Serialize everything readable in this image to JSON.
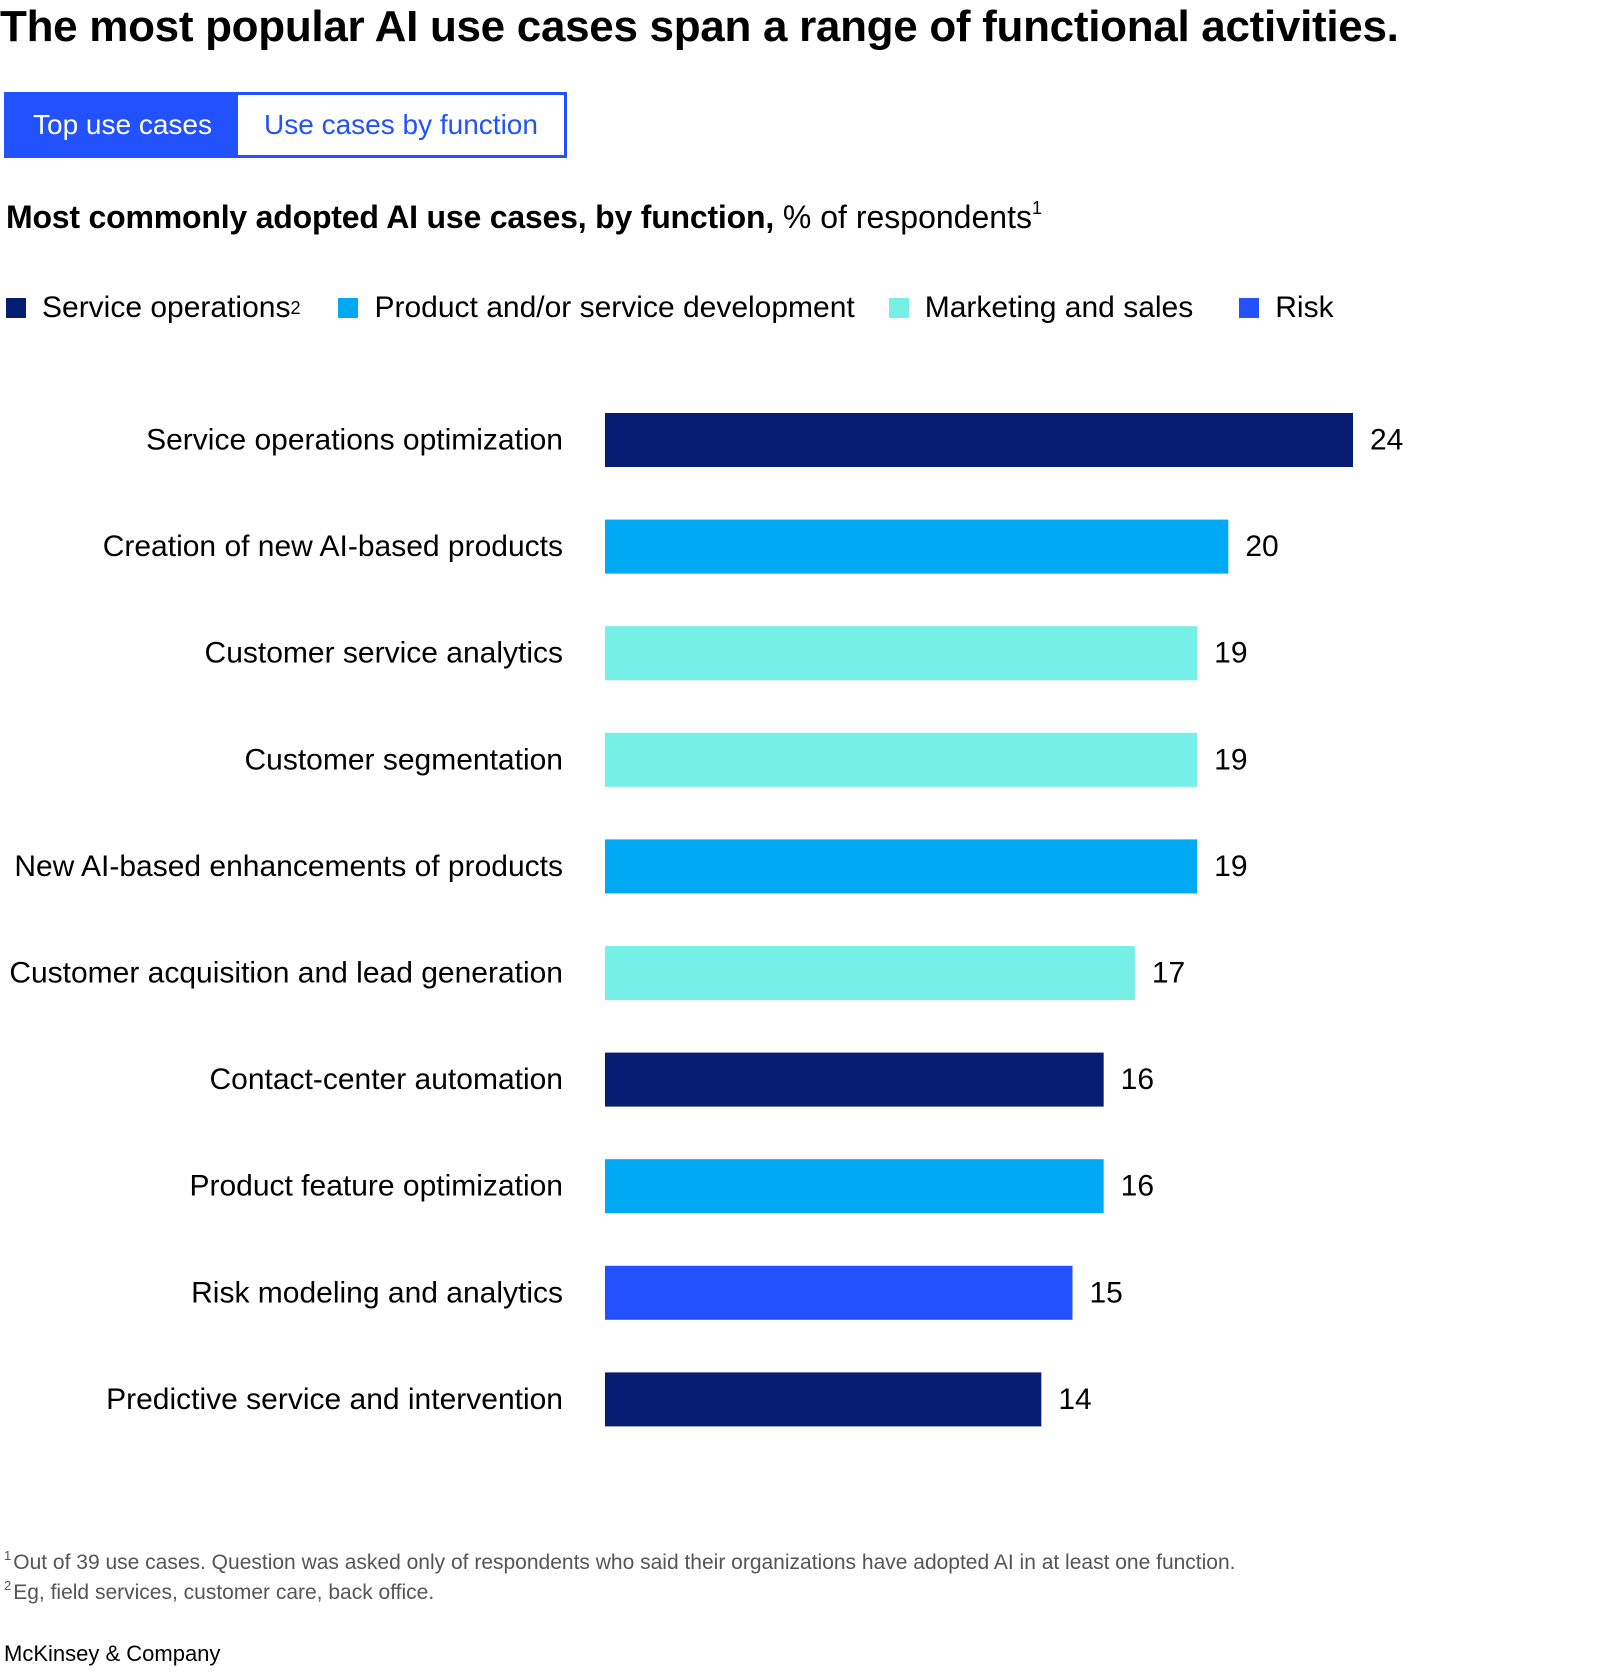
{
  "headline": "The most popular AI use cases span a range of functional activities.",
  "tabs": [
    {
      "label": "Top use cases",
      "active": true
    },
    {
      "label": "Use cases by function",
      "active": false
    }
  ],
  "subtitle": {
    "bold": "Most commonly adopted AI use cases, by function,",
    "regular": " % of respondents",
    "footnote_ref": "1"
  },
  "legend": [
    {
      "label": "Service operations",
      "sup": "2",
      "color": "#071d72"
    },
    {
      "label": "Product and/or service development",
      "sup": "",
      "color": "#00a9f4"
    },
    {
      "label": "Marketing and sales",
      "sup": "",
      "color": "#76efe6"
    },
    {
      "label": "Risk",
      "sup": "",
      "color": "#2251ff"
    }
  ],
  "chart_data": {
    "type": "bar",
    "orientation": "horizontal",
    "categories": [
      "Service operations optimization",
      "Creation of new AI-based products",
      "Customer service analytics",
      "Customer segmentation",
      "New AI-based enhancements of products",
      "Customer acquisition and lead generation",
      "Contact-center automation",
      "Product feature optimization",
      "Risk modeling and analytics",
      "Predictive service and intervention"
    ],
    "values": [
      24,
      20,
      19,
      19,
      19,
      17,
      16,
      16,
      15,
      14
    ],
    "bar_groups": [
      "Service operations",
      "Product and/or service development",
      "Marketing and sales",
      "Marketing and sales",
      "Product and/or service development",
      "Marketing and sales",
      "Service operations",
      "Product and/or service development",
      "Risk",
      "Service operations"
    ],
    "xlim": [
      0,
      24
    ],
    "data_labels": true,
    "grid": false,
    "legend_position": "top"
  },
  "footnotes": [
    {
      "mark": "1",
      "text": "Out of 39 use cases. Question was asked only of respondents who said their organizations have adopted AI in at least one function."
    },
    {
      "mark": "2",
      "text": "Eg, field services, customer care, back office."
    }
  ],
  "brand": "McKinsey & Company"
}
